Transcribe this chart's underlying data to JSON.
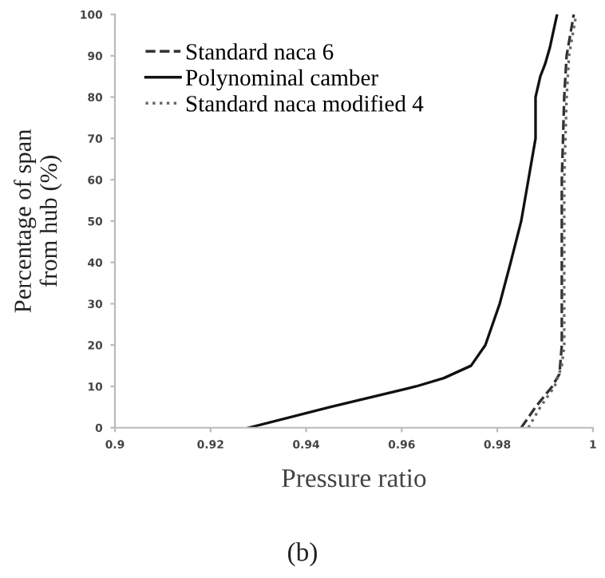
{
  "chart_data": {
    "type": "line",
    "xlabel": "Pressure ratio",
    "ylabel": "Percentage of span\nfrom hub (%)",
    "annotations": [
      "(b)"
    ],
    "xlim": [
      0.9,
      1.0
    ],
    "xticks": [
      0.9,
      0.92,
      0.94,
      0.96,
      0.98,
      {
        "value": 1.0,
        "label": "1"
      }
    ],
    "ylim": [
      0,
      100
    ],
    "yticks": [
      0,
      10,
      20,
      30,
      40,
      50,
      60,
      70,
      80,
      90,
      100
    ],
    "grid": false,
    "legend": "top left",
    "marker": "none",
    "series": [
      {
        "name": "Standard naca 6",
        "color": "#333333",
        "line_style": "dashed",
        "x": [
          0.985,
          0.988,
          0.9915,
          0.993,
          0.9935,
          0.9935,
          0.9935,
          0.994,
          0.9945,
          0.996
        ],
        "values": [
          0,
          5,
          10,
          13,
          20,
          40,
          60,
          80,
          90,
          100
        ]
      },
      {
        "name": "Polynominal camber",
        "color": "#111111",
        "line_style": "solid",
        "x": [
          0.928,
          0.945,
          0.963,
          0.9688,
          0.9745,
          0.9775,
          0.9805,
          0.9828,
          0.985,
          0.9865,
          0.988,
          0.988,
          0.989,
          0.99,
          0.991,
          0.9925
        ],
        "values": [
          0,
          5,
          10,
          12,
          15,
          20,
          30,
          40,
          50,
          60,
          70,
          80,
          85,
          88,
          92,
          100
        ]
      },
      {
        "name": "Standard naca modified 4",
        "color": "#666666",
        "line_style": "dotted",
        "x": [
          0.9865,
          0.989,
          0.992,
          0.9935,
          0.994,
          0.994,
          0.994,
          0.9945,
          0.995,
          0.9965
        ],
        "values": [
          0,
          5,
          10,
          15,
          20,
          40,
          60,
          80,
          90,
          100
        ]
      }
    ]
  }
}
